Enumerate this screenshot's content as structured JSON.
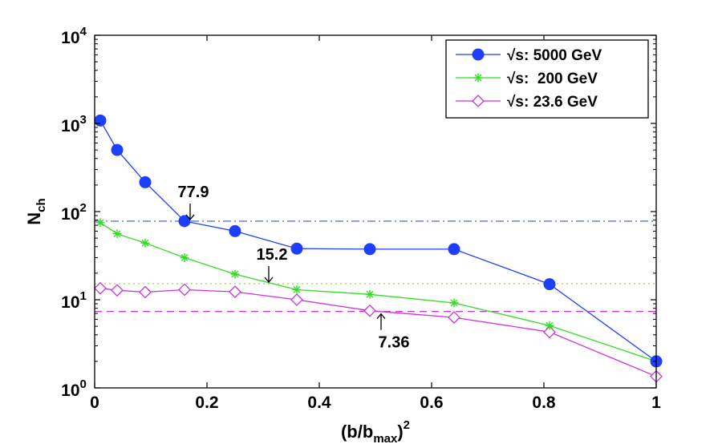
{
  "chart_data": {
    "type": "line",
    "y_scale": "log",
    "xlabel": "(b/b",
    "xlabel_sub": "max",
    "xlabel_close": ")",
    "xlabel_sup": "2",
    "ylabel": "N",
    "ylabel_sub": "ch",
    "xlim": [
      0,
      1
    ],
    "ylim": [
      1,
      10000
    ],
    "x_ticks": [
      {
        "value": 0,
        "label": "0"
      },
      {
        "value": 0.2,
        "label": "0.2"
      },
      {
        "value": 0.4,
        "label": "0.4"
      },
      {
        "value": 0.6,
        "label": "0.6"
      },
      {
        "value": 0.8,
        "label": "0.8"
      },
      {
        "value": 1,
        "label": "1"
      }
    ],
    "y_ticks": [
      {
        "value": 1,
        "base": "10",
        "exp": "0"
      },
      {
        "value": 10,
        "base": "10",
        "exp": "1"
      },
      {
        "value": 100,
        "base": "10",
        "exp": "2"
      },
      {
        "value": 1000,
        "base": "10",
        "exp": "3"
      },
      {
        "value": 10000,
        "base": "10",
        "exp": "4"
      }
    ],
    "series": [
      {
        "name": "√s: 5000 GeV",
        "color": "#1f3fff",
        "marker": "filled-circle",
        "x": [
          0.01,
          0.04,
          0.09,
          0.16,
          0.25,
          0.36,
          0.49,
          0.64,
          0.81,
          1.0
        ],
        "y": [
          1080,
          500,
          215,
          78,
          60,
          38,
          37.5,
          37.5,
          15,
          2
        ]
      },
      {
        "name": "√s:  200 GeV",
        "color": "#33dd22",
        "marker": "asterisk",
        "x": [
          0.01,
          0.04,
          0.09,
          0.16,
          0.25,
          0.36,
          0.49,
          0.64,
          0.81,
          1.0
        ],
        "y": [
          75,
          56,
          44,
          30,
          19.5,
          13,
          11.5,
          9.2,
          5.1,
          2
        ]
      },
      {
        "name": "√s: 23.6 GeV",
        "color": "#cc33dd",
        "marker": "open-diamond",
        "x": [
          0.01,
          0.04,
          0.09,
          0.16,
          0.25,
          0.36,
          0.49,
          0.64,
          0.81,
          1.0
        ],
        "y": [
          13.5,
          12.8,
          12.2,
          13,
          12.3,
          10,
          7.5,
          6.3,
          4.3,
          1.35
        ]
      }
    ],
    "reference_lines": [
      {
        "y": 77.9,
        "color": "#3355dd",
        "style": "dash-dot"
      },
      {
        "y": 15.2,
        "color": "#aacc44",
        "style": "dotted"
      },
      {
        "y": 7.36,
        "color": "#cc33dd",
        "style": "dashed"
      }
    ],
    "annotations": [
      {
        "text": "77.9",
        "x": 0.17,
        "y": 77.9,
        "arrow": "down"
      },
      {
        "text": "15.2",
        "x": 0.31,
        "y": 15.2,
        "arrow": "down"
      },
      {
        "text": "7.36",
        "x": 0.51,
        "y": 7.36,
        "arrow": "up"
      }
    ],
    "legend": {
      "position": "top-right"
    }
  }
}
